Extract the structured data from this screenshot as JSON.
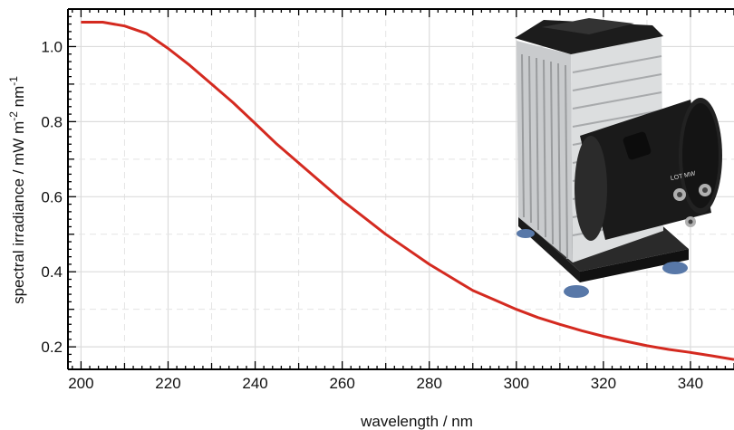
{
  "chart_data": {
    "type": "line",
    "xlabel": "wavelength / nm",
    "ylabel": "spectral irradiance / mW m",
    "ylabel_unit_exp1": "-2",
    "ylabel_unit_mid": " nm",
    "ylabel_unit_exp2": "-1",
    "xlim": [
      197,
      350
    ],
    "ylim": [
      0.14,
      1.1
    ],
    "grid": true,
    "x_ticks": [
      200,
      220,
      240,
      260,
      280,
      300,
      320,
      340
    ],
    "x_tick_labels": [
      "200",
      "220",
      "240",
      "260",
      "280",
      "300",
      "320",
      "340"
    ],
    "y_ticks": [
      0.2,
      0.4,
      0.6,
      0.8,
      1.0
    ],
    "y_tick_labels": [
      "0.2",
      "0.4",
      "0.6",
      "0.8",
      "1.0"
    ],
    "series": [
      {
        "color": "#d42a20",
        "x": [
          200,
          205,
          210,
          215,
          220,
          225,
          230,
          235,
          240,
          245,
          250,
          255,
          260,
          265,
          270,
          275,
          280,
          285,
          290,
          295,
          300,
          305,
          310,
          315,
          320,
          325,
          330,
          335,
          340,
          345,
          350
        ],
        "y": [
          1.065,
          1.065,
          1.055,
          1.035,
          0.995,
          0.95,
          0.9,
          0.85,
          0.795,
          0.74,
          0.69,
          0.64,
          0.59,
          0.545,
          0.5,
          0.46,
          0.42,
          0.385,
          0.35,
          0.325,
          0.3,
          0.278,
          0.26,
          0.243,
          0.228,
          0.215,
          0.203,
          0.193,
          0.185,
          0.176,
          0.166
        ]
      }
    ]
  },
  "inset": {
    "icon": "xenon-lamp-housing-photo",
    "housing_label": "LOT MW"
  }
}
